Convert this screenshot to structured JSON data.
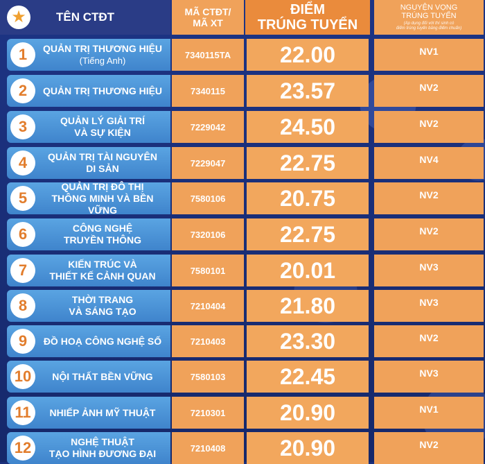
{
  "header": {
    "name": "TÊN CTĐT",
    "code_line1": "MÃ CTĐT/",
    "code_line2": "MÃ XT",
    "score_line1": "ĐIỂM",
    "score_line2": "TRÚNG TUYỂN",
    "nv_line1": "NGUYỆN VỌNG",
    "nv_line2": "TRÚNG TUYỂN",
    "nv_note1": "(Áp dụng đối với thí sinh có",
    "nv_note2": "điểm trúng tuyển bằng điểm chuẩn)",
    "star_icon": "★"
  },
  "rows": [
    {
      "no": "1",
      "name1": "QUẢN TRỊ THƯƠNG HIỆU",
      "name2": "(Tiếng Anh)",
      "code": "7340115TA",
      "score": "22.00",
      "nv": "NV1"
    },
    {
      "no": "2",
      "name1": "QUẢN TRỊ THƯƠNG HIỆU",
      "name2": "",
      "code": "7340115",
      "score": "23.57",
      "nv": "NV2"
    },
    {
      "no": "3",
      "name1": "QUẢN LÝ GIẢI TRÍ",
      "name2": "VÀ SỰ KIỆN",
      "code": "7229042",
      "score": "24.50",
      "nv": "NV2"
    },
    {
      "no": "4",
      "name1": "QUẢN TRỊ TÀI NGUYÊN",
      "name2": "DI SẢN",
      "code": "7229047",
      "score": "22.75",
      "nv": "NV4"
    },
    {
      "no": "5",
      "name1": "QUẢN TRỊ ĐÔ THỊ",
      "name2": "THÔNG MINH VÀ BỀN VỮNG",
      "code": "7580106",
      "score": "20.75",
      "nv": "NV2"
    },
    {
      "no": "6",
      "name1": "CÔNG NGHỆ",
      "name2": "TRUYỀN THÔNG",
      "code": "7320106",
      "score": "22.75",
      "nv": "NV2"
    },
    {
      "no": "7",
      "name1": "KIẾN TRÚC VÀ",
      "name2": "THIẾT KẾ CẢNH QUAN",
      "code": "7580101",
      "score": "20.01",
      "nv": "NV3"
    },
    {
      "no": "8",
      "name1": "THỜI TRANG",
      "name2": "VÀ SÁNG TẠO",
      "code": "7210404",
      "score": "21.80",
      "nv": "NV3"
    },
    {
      "no": "9",
      "name1": "ĐỒ HOẠ CÔNG NGHỆ SỐ",
      "name2": "",
      "code": "7210403",
      "score": "23.30",
      "nv": "NV2"
    },
    {
      "no": "10",
      "name1": "NỘI THẤT BỀN VỮNG",
      "name2": "",
      "code": "7580103",
      "score": "22.45",
      "nv": "NV3"
    },
    {
      "no": "11",
      "name1": "NHIẾP ẢNH MỸ THUẬT",
      "name2": "",
      "code": "7210301",
      "score": "20.90",
      "nv": "NV1"
    },
    {
      "no": "12",
      "name1": "NGHỆ THUẬT",
      "name2": "TẠO HÌNH ĐƯƠNG ĐẠI",
      "code": "7210408",
      "score": "20.90",
      "nv": "NV2"
    }
  ]
}
